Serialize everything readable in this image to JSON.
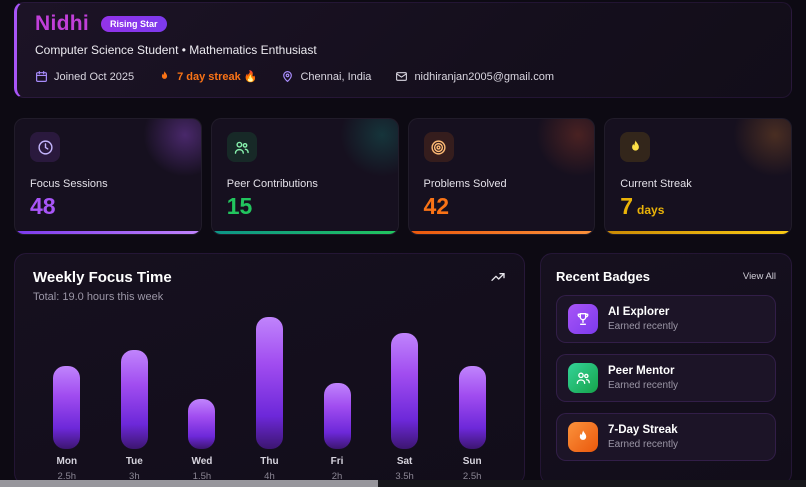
{
  "profile": {
    "name": "Nidhi",
    "level_badge": "Rising Star",
    "subtitle": "Computer Science Student • Mathematics Enthusiast",
    "meta": [
      {
        "icon": "calendar-icon",
        "text": "Joined Oct 2025"
      },
      {
        "icon": "flame-icon",
        "text": "7 day streak 🔥"
      },
      {
        "icon": "location-pin-icon",
        "text": "Chennai, India"
      },
      {
        "icon": "mail-icon",
        "text": "nidhiranjan2005@gmail.com"
      }
    ]
  },
  "stats": [
    {
      "label": "Focus Sessions",
      "value": "48",
      "unit": "",
      "icon": "clock-icon",
      "color": "#a855f7"
    },
    {
      "label": "Peer Contributions",
      "value": "15",
      "unit": "",
      "icon": "users-icon",
      "color": "#22c55e"
    },
    {
      "label": "Problems Solved",
      "value": "42",
      "unit": "",
      "icon": "target-icon",
      "color": "#f97316"
    },
    {
      "label": "Current Streak",
      "value": "7",
      "unit": "days",
      "icon": "flame-icon",
      "color": "#eab308"
    }
  ],
  "chart_data": {
    "type": "bar",
    "title": "Weekly Focus Time",
    "subtitle": "Total: 19.0 hours this week",
    "categories": [
      "Mon",
      "Tue",
      "Wed",
      "Thu",
      "Fri",
      "Sat",
      "Sun"
    ],
    "values": [
      2.5,
      3,
      1.5,
      4,
      2,
      3.5,
      2.5
    ],
    "value_labels": [
      "2.5h",
      "3h",
      "1.5h",
      "4h",
      "2h",
      "3.5h",
      "2.5h"
    ],
    "ylim": [
      0,
      4
    ],
    "legend": false,
    "grid": false,
    "bar_color_top": "#c084fc",
    "bar_color_bottom": "#3c1670",
    "corner_icon": "trend-up-icon"
  },
  "badges": {
    "title": "Recent Badges",
    "view_all_label": "View All",
    "items": [
      {
        "name": "AI Explorer",
        "status": "Earned recently",
        "icon": "trophy-icon",
        "color": "#a855f7"
      },
      {
        "name": "Peer Mentor",
        "status": "Earned recently",
        "icon": "users-icon",
        "color": "#22c55e"
      },
      {
        "name": "7-Day Streak",
        "status": "Earned recently",
        "icon": "flame-icon",
        "color": "#f97316"
      }
    ]
  },
  "colors": {
    "background": "#0d0a13",
    "card_background": "#16101f",
    "name_accent": "#c13fd9",
    "accent_purple": "#a855f7",
    "accent_green": "#22c55e",
    "accent_orange": "#f97316",
    "accent_amber": "#eab308"
  }
}
